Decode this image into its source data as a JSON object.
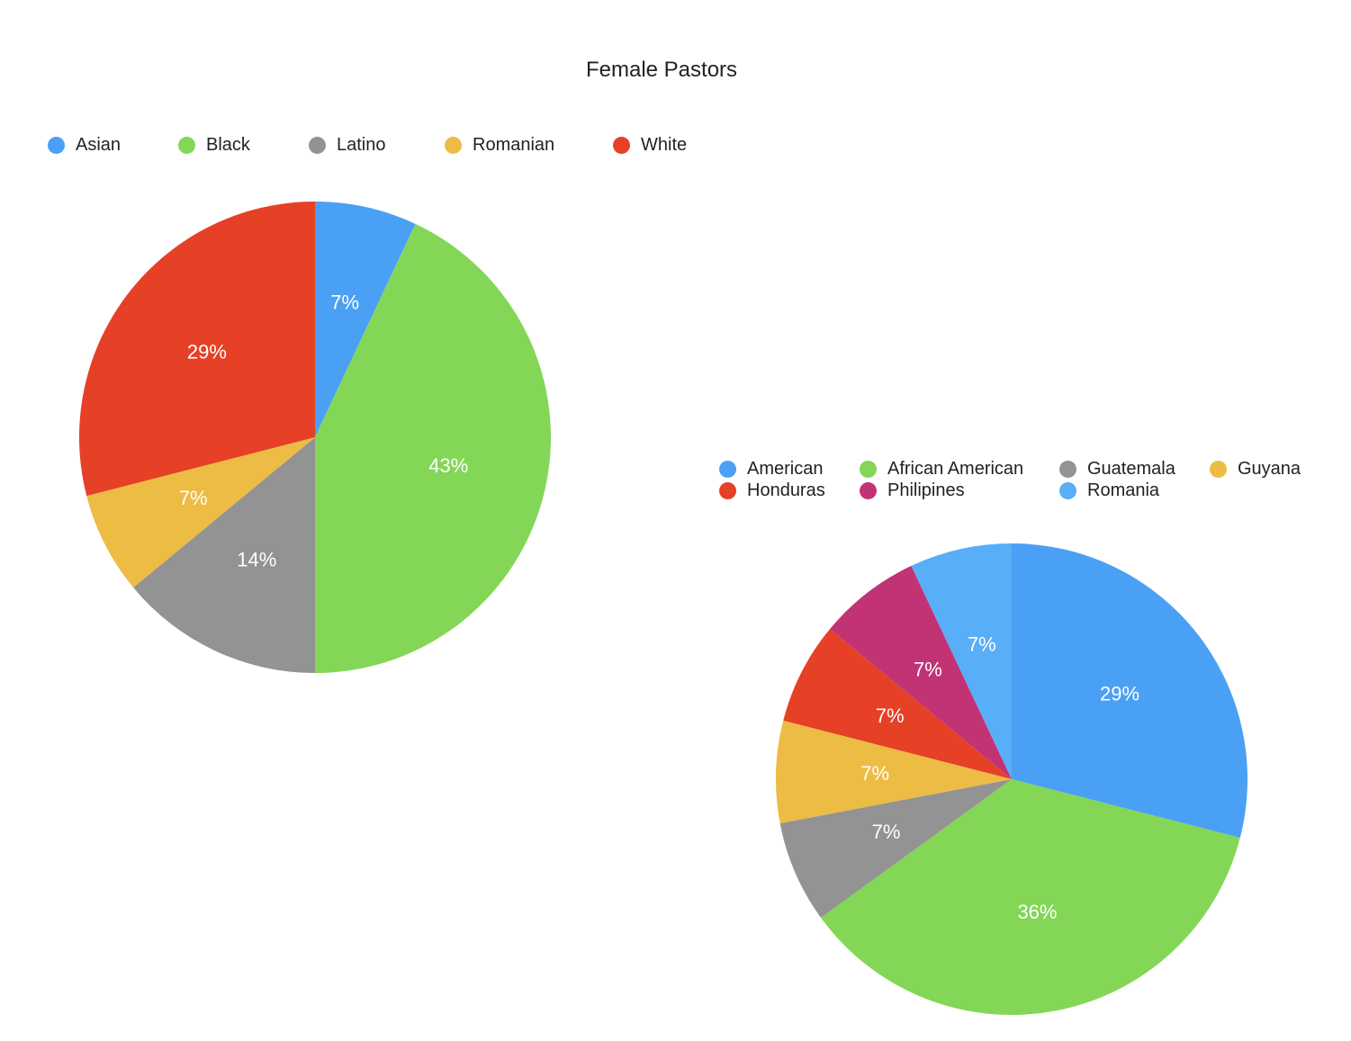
{
  "chart_data": [
    {
      "type": "pie",
      "title": "Female Pastors",
      "legend_position": "top",
      "slices": [
        {
          "label": "Asian",
          "value": 7,
          "display": "7%",
          "color": "#4aa0f5"
        },
        {
          "label": "Black",
          "value": 43,
          "display": "43%",
          "color": "#84d657"
        },
        {
          "label": "Latino",
          "value": 14,
          "display": "14%",
          "color": "#939393"
        },
        {
          "label": "Romanian",
          "value": 7,
          "display": "7%",
          "color": "#ecbc45"
        },
        {
          "label": "White",
          "value": 29,
          "display": "29%",
          "color": "#e64026"
        }
      ]
    },
    {
      "type": "pie",
      "title": "",
      "legend_position": "top",
      "slices": [
        {
          "label": "American",
          "value": 29,
          "display": "29%",
          "color": "#4aa0f5"
        },
        {
          "label": "African American",
          "value": 36,
          "display": "36%",
          "color": "#84d657"
        },
        {
          "label": "Guatemala",
          "value": 7,
          "display": "7%",
          "color": "#939393"
        },
        {
          "label": "Guyana",
          "value": 7,
          "display": "7%",
          "color": "#ecbc45"
        },
        {
          "label": "Honduras",
          "value": 7,
          "display": "7%",
          "color": "#e64026"
        },
        {
          "label": "Philipines",
          "value": 7,
          "display": "7%",
          "color": "#c13375"
        },
        {
          "label": "Romania",
          "value": 7,
          "display": "7%",
          "color": "#58aef7"
        }
      ]
    }
  ]
}
